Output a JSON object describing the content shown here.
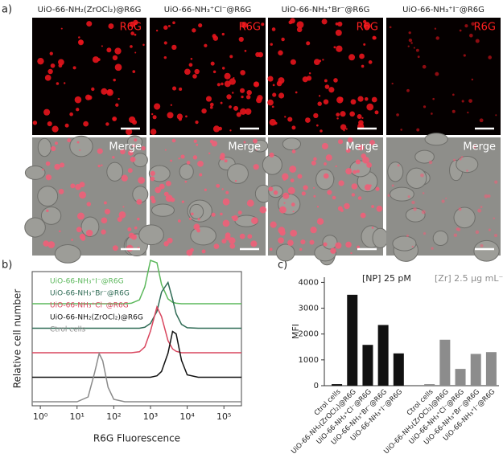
{
  "panel_labels": [
    "a)",
    "b)",
    "c)"
  ],
  "images": {
    "columns": [
      "UiO-66-NH₂(ZrOCl₂)@R6G",
      "UiO-66-NH₃⁺Cl⁻@R6G",
      "UiO-66-NH₃⁺Br⁻@R6G",
      "UiO-66-NH₃⁺I⁻@R6G"
    ],
    "row_labels": [
      "R6G",
      "Merge"
    ]
  },
  "chart_data": [
    {
      "type": "line",
      "xscale": "log",
      "xlabel": "R6G Fluorescence",
      "ylabel": "Relative cell number",
      "x": [
        10,
        20,
        30,
        40,
        50,
        70,
        100,
        200,
        300,
        500,
        700,
        1000,
        1500,
        2000,
        3000,
        4000,
        5000,
        7000,
        10000,
        20000
      ],
      "xlim": [
        0.6,
        300000
      ],
      "xticks": [
        {
          "value": 1,
          "label": "10⁰"
        },
        {
          "value": 10,
          "label": "10¹"
        },
        {
          "value": 100,
          "label": "10²"
        },
        {
          "value": 1000,
          "label": "10³"
        },
        {
          "value": 10000,
          "label": "10⁴"
        },
        {
          "value": 100000,
          "label": "10⁵"
        }
      ],
      "ylim": [
        0,
        100
      ],
      "series": [
        {
          "name": "UiO-66-NH₃⁺I⁻@R6G",
          "color": "#5cb85c",
          "values": [
            0,
            0,
            0,
            0,
            0,
            0,
            0,
            0,
            1,
            8,
            35,
            90,
            85,
            40,
            10,
            3,
            1,
            0,
            0,
            0
          ]
        },
        {
          "name": "UiO-66-NH₃⁺Br⁻@R6G",
          "color": "#2f6b55",
          "values": [
            0,
            0,
            0,
            0,
            0,
            0,
            0,
            0,
            0,
            0,
            2,
            10,
            35,
            75,
            95,
            60,
            30,
            8,
            1,
            0
          ]
        },
        {
          "name": "UiO-66-NH₃⁺Cl⁻@R6G",
          "color": "#d9475f",
          "values": [
            0,
            0,
            0,
            0,
            0,
            0,
            0,
            0,
            0,
            2,
            12,
            45,
            95,
            75,
            25,
            8,
            3,
            0,
            0,
            0
          ]
        },
        {
          "name": "UiO-66-NH₂(ZrOCl₂)@R6G",
          "color": "#111111",
          "values": [
            0,
            0,
            0,
            0,
            0,
            0,
            0,
            0,
            0,
            0,
            0,
            0,
            3,
            12,
            50,
            95,
            90,
            35,
            5,
            0
          ]
        },
        {
          "name": "Ctrol cells",
          "color": "#8a8a8a",
          "values": [
            0,
            10,
            60,
            100,
            85,
            30,
            5,
            0,
            0,
            0,
            0,
            0,
            0,
            0,
            0,
            0,
            0,
            0,
            0,
            0
          ]
        }
      ]
    },
    {
      "type": "bar",
      "ylabel": "MFI",
      "annotations": [
        "[NP] 25 pM",
        "[Zr]  2.5 µg mL⁻¹"
      ],
      "categories": [
        "Ctrol cells",
        "UiO-66-NH₂(ZrOCl₂)@R6G",
        "UiO-66-NH₃⁺Cl⁻@R6G",
        "UiO-66-NH₃⁺Br⁻@R6G",
        "UiO-66-NH₃⁺I⁻@R6G",
        "Ctrol cells",
        "UiO-66-NH₂(ZrOCl₂)@R6G",
        "UiO-66-NH₃⁺Cl⁻@R6G",
        "UiO-66-NH₃⁺Br⁻@R6G",
        "UiO-66-NH₃⁺I⁻@R6G"
      ],
      "values": [
        60,
        3520,
        1580,
        2350,
        1250,
        60,
        1780,
        650,
        1230,
        1300
      ],
      "colors": [
        "#111111",
        "#111111",
        "#111111",
        "#111111",
        "#111111",
        "#8c8c8c",
        "#8c8c8c",
        "#8c8c8c",
        "#8c8c8c",
        "#8c8c8c"
      ],
      "ylim": [
        0,
        4200
      ],
      "yticks": [
        0,
        1000,
        2000,
        3000,
        4000
      ]
    }
  ]
}
